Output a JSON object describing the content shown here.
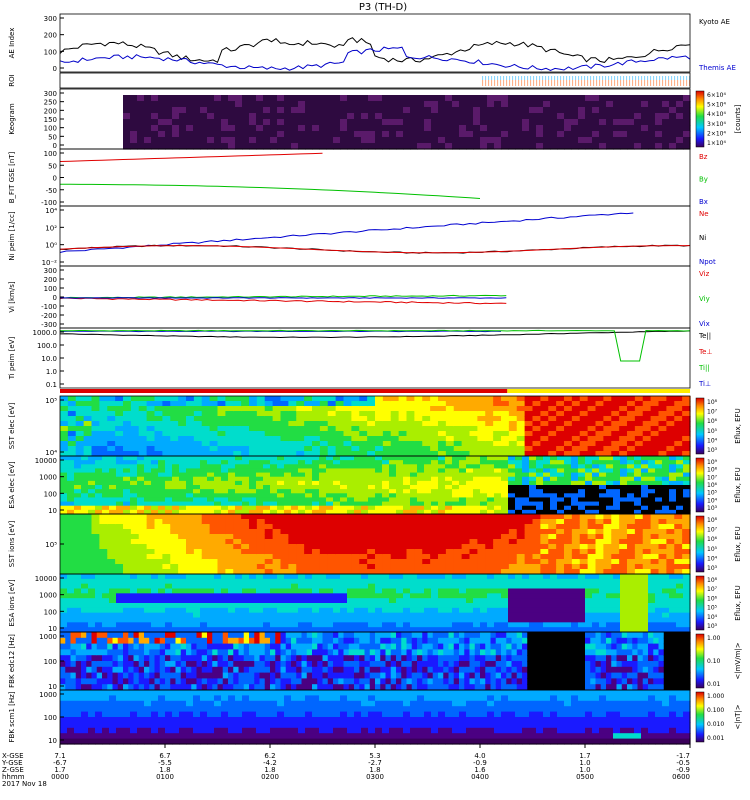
{
  "title": "P3 (TH-D)",
  "colors": {
    "kyoto": "#000000",
    "themis": "#0000c8",
    "red": "#e00000",
    "green": "#00c000",
    "blue": "#0000d0",
    "black": "#000000"
  },
  "chart_data": {
    "type": "line",
    "title": "P3 (TH-D)",
    "x_time_labels": [
      "0000",
      "0100",
      "0200",
      "0300",
      "0400",
      "0500",
      "0600"
    ],
    "date_label": "2017 Nov 18",
    "panels": [
      {
        "id": "ae",
        "ylabel": "AE Index",
        "yticks": [
          "300",
          "200",
          "100",
          "0"
        ],
        "ylim": [
          0,
          300
        ],
        "series": [
          {
            "name": "Kyoto AE",
            "color": "black"
          },
          {
            "name": "Themis AE",
            "color": "blue"
          }
        ]
      },
      {
        "id": "roi",
        "ylabel": "ROI"
      },
      {
        "id": "keogram",
        "ylabel": "Keogram",
        "yticks": [
          "300",
          "250",
          "200",
          "150",
          "100",
          "50",
          "0"
        ],
        "colorbar_ticks": [
          "6×10⁴",
          "5×10⁴",
          "4×10⁴",
          "3×10⁴",
          "2×10⁴",
          "1×10⁴"
        ],
        "colorbar_label": "[counts]"
      },
      {
        "id": "bfit",
        "ylabel": "B_FIT GSE [nT]",
        "yticks": [
          "100",
          "50",
          "0",
          "-50",
          "-100"
        ],
        "ylim": [
          -100,
          100
        ],
        "series": [
          {
            "name": "Bz",
            "color": "red"
          },
          {
            "name": "By",
            "color": "green"
          },
          {
            "name": "Bx",
            "color": "blue"
          }
        ]
      },
      {
        "id": "ni",
        "ylabel": "Ni peim [1/cc]",
        "yticks": [
          "10⁴",
          "10²",
          "10⁰",
          "10⁻²"
        ],
        "series": [
          {
            "name": "Ne",
            "color": "red"
          },
          {
            "name": "Ni",
            "color": "black"
          },
          {
            "name": "Npot",
            "color": "blue"
          }
        ]
      },
      {
        "id": "vi",
        "ylabel": "Vi [km/s]",
        "yticks": [
          "300",
          "200",
          "100",
          "0",
          "-100",
          "-200",
          "-300"
        ],
        "ylim": [
          -300,
          300
        ],
        "series": [
          {
            "name": "Viz",
            "color": "red"
          },
          {
            "name": "Viy",
            "color": "green"
          },
          {
            "name": "Vix",
            "color": "blue"
          }
        ]
      },
      {
        "id": "ti",
        "ylabel": "Ti peim [eV]",
        "yticks": [
          "1000.0",
          "100.0",
          "10.0",
          "1.0",
          "0.1"
        ],
        "series": [
          {
            "name": "Te||",
            "color": "black"
          },
          {
            "name": "Te⊥",
            "color": "red"
          },
          {
            "name": "Ti||",
            "color": "green"
          },
          {
            "name": "Ti⊥",
            "color": "blue"
          }
        ]
      },
      {
        "id": "sst_e",
        "ylabel": "SST elec [eV]",
        "yticks": [
          "10⁵",
          "10⁴"
        ],
        "colorbar_label": "Eflux, EFU",
        "colorbar_ticks": [
          "10⁸",
          "10⁷",
          "10⁶",
          "10⁵",
          "10⁴",
          "10³"
        ]
      },
      {
        "id": "esa_e",
        "ylabel": "ESA elec [eV]",
        "yticks": [
          "10000",
          "1000",
          "100",
          "10"
        ],
        "colorbar_label": "Eflux, EFU",
        "colorbar_ticks": [
          "10⁹",
          "10⁸",
          "10⁷",
          "10⁶",
          "10⁵",
          "10⁴",
          "10³"
        ]
      },
      {
        "id": "sst_i",
        "ylabel": "SST ions [eV]",
        "yticks": [
          "10⁵"
        ],
        "colorbar_label": "Eflux, EFU",
        "colorbar_ticks": [
          "10⁸",
          "10⁷",
          "10⁶",
          "10⁵",
          "10⁴",
          "10³"
        ]
      },
      {
        "id": "esa_i",
        "ylabel": "ESA ions [eV]",
        "yticks": [
          "10000",
          "1000",
          "100",
          "10"
        ],
        "colorbar_label": "Eflux, EFU",
        "colorbar_ticks": [
          "10⁸",
          "10⁷",
          "10⁶",
          "10⁵",
          "10⁴",
          "10³"
        ]
      },
      {
        "id": "fbk_e",
        "ylabel": "FBK edc12 [Hz]",
        "yticks": [
          "1000",
          "100",
          "10"
        ],
        "colorbar_label": "<|mV/m|>",
        "colorbar_ticks": [
          "1.00",
          "0.10",
          "0.01"
        ]
      },
      {
        "id": "fbk_b",
        "ylabel": "FBK scm1 [Hz]",
        "yticks": [
          "1000",
          "100",
          "10"
        ],
        "colorbar_label": "<|nT|>",
        "colorbar_ticks": [
          "1.000",
          "0.100",
          "0.010",
          "0.001"
        ]
      }
    ],
    "ephemeris": {
      "labels": [
        "X-GSE",
        "Y-GSE",
        "Z-GSE",
        "hhmm",
        "2017 Nov 18"
      ],
      "columns": [
        [
          "7.1",
          "-6.7",
          "1.7",
          "0000"
        ],
        [
          "6.7",
          "-5.5",
          "1.8",
          "0100"
        ],
        [
          "6.2",
          "-4.2",
          "1.8",
          "0200"
        ],
        [
          "5.3",
          "-2.7",
          "1.8",
          "0300"
        ],
        [
          "4.0",
          "-0.9",
          "1.6",
          "0400"
        ],
        [
          "1.7",
          "1.0",
          "1.0",
          "0500"
        ],
        [
          "-1.7",
          "-0.5",
          "-0.9",
          "0600"
        ]
      ]
    }
  }
}
